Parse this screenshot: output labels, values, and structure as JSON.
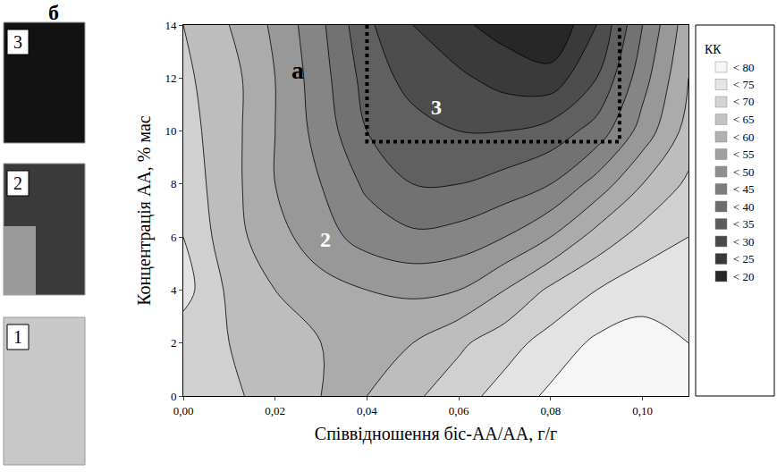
{
  "chart_data": {
    "type": "contour",
    "x_label": "Співвідношення біс-АА/АА, г/г",
    "y_label": "Концентрація АА, % мас",
    "x": [
      0,
      0.01,
      0.02,
      0.03,
      0.04,
      0.05,
      0.06,
      0.07,
      0.08,
      0.09,
      0.1,
      0.11
    ],
    "y": [
      0,
      2,
      4,
      6,
      8,
      10,
      12,
      14
    ],
    "z": [
      [
        68,
        66,
        63,
        60,
        60,
        64,
        68,
        72,
        76,
        78,
        78,
        76
      ],
      [
        67,
        65,
        62,
        60,
        59,
        60,
        64,
        68,
        72,
        76,
        77,
        75
      ],
      [
        72,
        64,
        60,
        57,
        55,
        54,
        55,
        60,
        66,
        70,
        73,
        74
      ],
      [
        70,
        62,
        57,
        52,
        48,
        46,
        47,
        50,
        55,
        62,
        67,
        70
      ],
      [
        68,
        62,
        55,
        50,
        44,
        40,
        40,
        42,
        45,
        52,
        60,
        66
      ],
      [
        67,
        62,
        55,
        48,
        40,
        37,
        35,
        35,
        37,
        42,
        52,
        62
      ],
      [
        66,
        62,
        55,
        47,
        38,
        33,
        31,
        28,
        27,
        35,
        48,
        60
      ],
      [
        65,
        60,
        54,
        46,
        36,
        30,
        26,
        23,
        20,
        30,
        45,
        58
      ]
    ],
    "xlim": [
      0,
      0.11
    ],
    "ylim": [
      0,
      14
    ],
    "xticks": [
      {
        "value": 0,
        "label": "0,00"
      },
      {
        "value": 0.02,
        "label": "0,02"
      },
      {
        "value": 0.04,
        "label": "0,04"
      },
      {
        "value": 0.06,
        "label": "0,06"
      },
      {
        "value": 0.08,
        "label": "0,08"
      },
      {
        "value": 0.1,
        "label": "0,10"
      }
    ],
    "yticks": [
      0,
      2,
      4,
      6,
      8,
      10,
      12,
      14
    ],
    "grid": false,
    "colorbar": {
      "title": "КК",
      "levels": [
        {
          "value": 80,
          "label": "< 80"
        },
        {
          "value": 75,
          "label": "< 75"
        },
        {
          "value": 70,
          "label": "< 70"
        },
        {
          "value": 65,
          "label": "< 65"
        },
        {
          "value": 60,
          "label": "< 60"
        },
        {
          "value": 55,
          "label": "< 55"
        },
        {
          "value": 50,
          "label": "< 50"
        },
        {
          "value": 45,
          "label": "< 45"
        },
        {
          "value": 40,
          "label": "< 40"
        },
        {
          "value": 35,
          "label": "< 35"
        },
        {
          "value": 30,
          "label": "< 30"
        },
        {
          "value": 25,
          "label": "< 25"
        },
        {
          "value": 20,
          "label": "< 20"
        }
      ]
    },
    "annotations": [
      {
        "text": "а",
        "x": 0.025,
        "y": 12.3
      },
      {
        "text": "2",
        "x": 0.031,
        "y": 5.9
      },
      {
        "text": "3",
        "x": 0.055,
        "y": 10.9
      }
    ],
    "region": {
      "x": [
        0.04,
        0.095
      ],
      "y": [
        9.6,
        14
      ]
    },
    "panel_b": {
      "label": "б",
      "photos": [
        "3",
        "2",
        "1"
      ]
    }
  }
}
